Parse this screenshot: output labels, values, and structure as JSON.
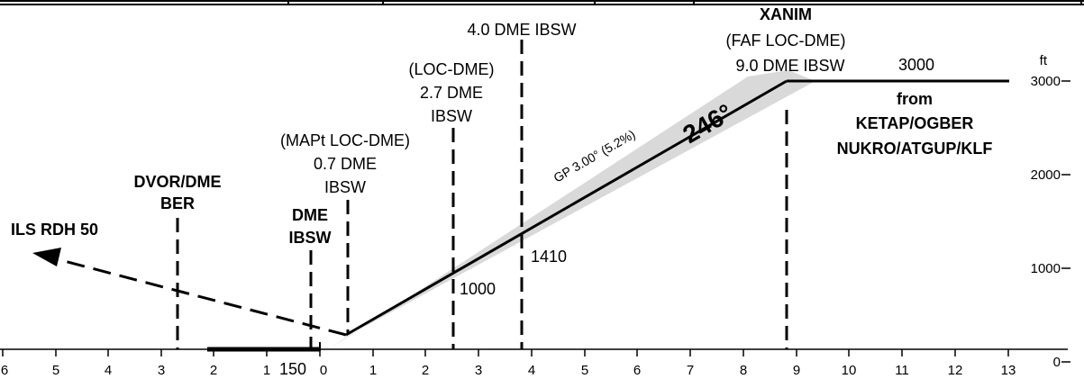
{
  "altitude_unit": "ft",
  "altitude_ticks": [
    "3000",
    "2000",
    "1000",
    "0"
  ],
  "distance_ticks": [
    "6",
    "5",
    "4",
    "3",
    "2",
    "1",
    "0",
    "1",
    "2",
    "3",
    "4",
    "5",
    "6",
    "7",
    "8",
    "9",
    "10",
    "11",
    "12",
    "13"
  ],
  "tdz_elevation": "150",
  "labels": {
    "ils_rdh": "ILS RDH 50",
    "dvor_line1": "DVOR/DME",
    "dvor_line2": "BER",
    "dme_line1": "DME",
    "dme_line2": "IBSW",
    "mapt_line1": "(MAPt LOC-DME)",
    "mapt_line2": "0.7 DME",
    "mapt_line3": "IBSW",
    "locdme_line1": "(LOC-DME)",
    "locdme_line2": "2.7 DME",
    "locdme_line3": "IBSW",
    "dme4_line1": "4.0 DME IBSW",
    "xanim_line1": "XANIM",
    "xanim_line2": "(FAF LOC-DME)",
    "xanim_line3": "9.0 DME IBSW",
    "alt_3000": "3000",
    "alt_1000": "1000",
    "alt_1410": "1410",
    "from_line1": "from",
    "from_line2": "KETAP/OGBER",
    "from_line3": "NUKRO/ATGUP/KLF",
    "glidepath": "GP 3.00° (5.2%)",
    "course": "246°"
  }
}
